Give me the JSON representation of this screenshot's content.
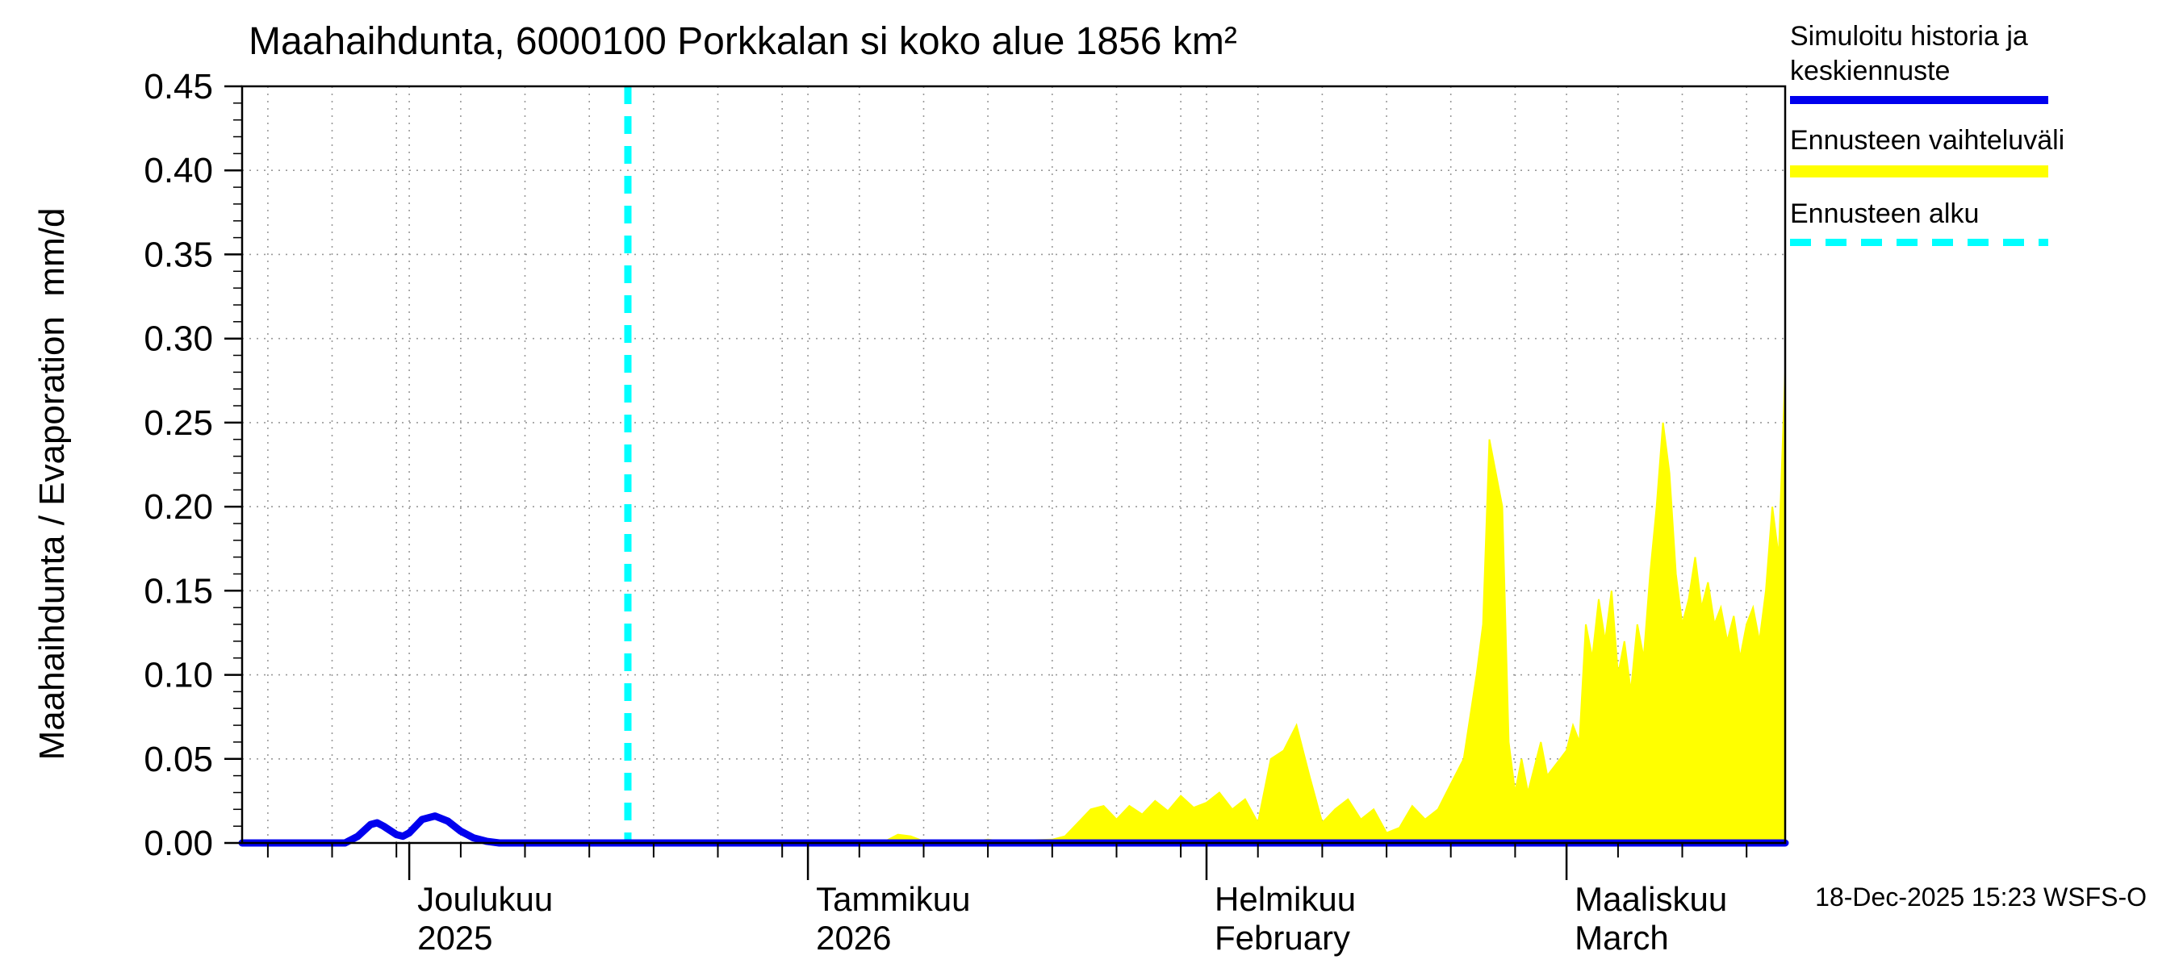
{
  "page": {
    "title": "Maahaihdunta, 6000100 Porkkalan si koko alue 1856 km²",
    "footer_timestamp": "18-Dec-2025 15:23 WSFS-O"
  },
  "legend": {
    "items": [
      {
        "label": "Simuloitu historia ja keskiennuste",
        "color": "#0000ee",
        "style": "solid"
      },
      {
        "label": "Ennusteen vaihteluväli",
        "color": "#ffff00",
        "style": "solid"
      },
      {
        "label": "Ennusteen alku",
        "color": "#00ffff",
        "style": "dashed"
      }
    ]
  },
  "chart_data": {
    "type": "area+line",
    "title": "Maahaihdunta, 6000100 Porkkalan si koko alue 1856 km²",
    "ylabel": "Maahaihdunta / Evaporation  mm/d",
    "ylim": [
      0,
      0.45
    ],
    "ytick_step": 0.05,
    "ytick_labels": [
      "0.00",
      "0.05",
      "0.10",
      "0.15",
      "0.20",
      "0.25",
      "0.30",
      "0.35",
      "0.40",
      "0.45"
    ],
    "x_start_date": "2025-11-18",
    "x_end_date": "2026-03-18",
    "total_days": 120,
    "grid_on": true,
    "grid_color": "#999999",
    "month_ticks": [
      {
        "day": 13,
        "line1": "Joulukuu",
        "line2": "2025"
      },
      {
        "day": 44,
        "line1": "Tammikuu",
        "line2": "2026"
      },
      {
        "day": 75,
        "line1": "Helmikuu",
        "line2": "February"
      },
      {
        "day": 103,
        "line1": "Maaliskuu",
        "line2": "March"
      }
    ],
    "grid_days": [
      2,
      7,
      12,
      17,
      22,
      27,
      32,
      37,
      42,
      48,
      53,
      58,
      63,
      68,
      73,
      79,
      84,
      89,
      94,
      99,
      107,
      112,
      117
    ],
    "forecast_start": {
      "day": 30,
      "date": "2025-12-18",
      "color": "#00ffff"
    },
    "series": {
      "history_median": {
        "name": "Simuloitu historia ja keskiennuste",
        "color": "#0000ee",
        "unit": "mm/d",
        "points": [
          [
            0,
            0
          ],
          [
            8,
            0
          ],
          [
            9,
            0.004
          ],
          [
            10,
            0.011
          ],
          [
            10.5,
            0.012
          ],
          [
            11,
            0.01
          ],
          [
            12,
            0.005
          ],
          [
            12.5,
            0.004
          ],
          [
            13,
            0.006
          ],
          [
            14,
            0.014
          ],
          [
            15,
            0.016
          ],
          [
            16,
            0.013
          ],
          [
            17,
            0.007
          ],
          [
            18,
            0.003
          ],
          [
            19,
            0.001
          ],
          [
            20,
            0
          ],
          [
            120,
            0
          ]
        ]
      },
      "forecast_range_upper": {
        "name": "Ennusteen vaihteluväli",
        "color": "#ffff00",
        "unit": "mm/d",
        "lower_bound": 0,
        "points": [
          [
            30,
            0
          ],
          [
            48,
            0.001
          ],
          [
            50,
            0.001
          ],
          [
            51,
            0.005
          ],
          [
            52,
            0.004
          ],
          [
            53,
            0.001
          ],
          [
            57,
            0.001
          ],
          [
            58,
            0.002
          ],
          [
            59,
            0.001
          ],
          [
            63,
            0.002
          ],
          [
            64,
            0.004
          ],
          [
            65,
            0.012
          ],
          [
            66,
            0.02
          ],
          [
            67,
            0.022
          ],
          [
            68,
            0.014
          ],
          [
            69,
            0.022
          ],
          [
            70,
            0.017
          ],
          [
            71,
            0.025
          ],
          [
            72,
            0.019
          ],
          [
            73,
            0.028
          ],
          [
            74,
            0.021
          ],
          [
            75,
            0.024
          ],
          [
            76,
            0.03
          ],
          [
            77,
            0.02
          ],
          [
            78,
            0.026
          ],
          [
            79,
            0.012
          ],
          [
            80,
            0.05
          ],
          [
            81,
            0.055
          ],
          [
            82,
            0.07
          ],
          [
            83,
            0.04
          ],
          [
            84,
            0.012
          ],
          [
            85,
            0.02
          ],
          [
            86,
            0.026
          ],
          [
            87,
            0.014
          ],
          [
            88,
            0.02
          ],
          [
            89,
            0.006
          ],
          [
            90,
            0.009
          ],
          [
            91,
            0.022
          ],
          [
            92,
            0.014
          ],
          [
            93,
            0.02
          ],
          [
            94,
            0.035
          ],
          [
            95,
            0.05
          ],
          [
            96,
            0.1
          ],
          [
            96.5,
            0.13
          ],
          [
            97,
            0.24
          ],
          [
            97.5,
            0.22
          ],
          [
            98,
            0.2
          ],
          [
            98.5,
            0.06
          ],
          [
            99,
            0.03
          ],
          [
            99.5,
            0.05
          ],
          [
            100,
            0.03
          ],
          [
            100.5,
            0.045
          ],
          [
            101,
            0.06
          ],
          [
            101.5,
            0.04
          ],
          [
            102,
            0.045
          ],
          [
            102.5,
            0.05
          ],
          [
            103,
            0.055
          ],
          [
            103.5,
            0.07
          ],
          [
            104,
            0.06
          ],
          [
            104.5,
            0.13
          ],
          [
            105,
            0.11
          ],
          [
            105.5,
            0.145
          ],
          [
            106,
            0.12
          ],
          [
            106.5,
            0.15
          ],
          [
            107,
            0.1
          ],
          [
            107.5,
            0.12
          ],
          [
            108,
            0.09
          ],
          [
            108.5,
            0.13
          ],
          [
            109,
            0.11
          ],
          [
            109.5,
            0.16
          ],
          [
            110,
            0.2
          ],
          [
            110.5,
            0.25
          ],
          [
            111,
            0.22
          ],
          [
            111.5,
            0.16
          ],
          [
            112,
            0.13
          ],
          [
            112.5,
            0.145
          ],
          [
            113,
            0.17
          ],
          [
            113.5,
            0.14
          ],
          [
            114,
            0.155
          ],
          [
            114.5,
            0.13
          ],
          [
            115,
            0.14
          ],
          [
            115.5,
            0.12
          ],
          [
            116,
            0.135
          ],
          [
            116.5,
            0.11
          ],
          [
            117,
            0.13
          ],
          [
            117.5,
            0.14
          ],
          [
            118,
            0.12
          ],
          [
            118.5,
            0.15
          ],
          [
            119,
            0.2
          ],
          [
            119.5,
            0.17
          ],
          [
            120,
            0.28
          ]
        ]
      }
    }
  }
}
